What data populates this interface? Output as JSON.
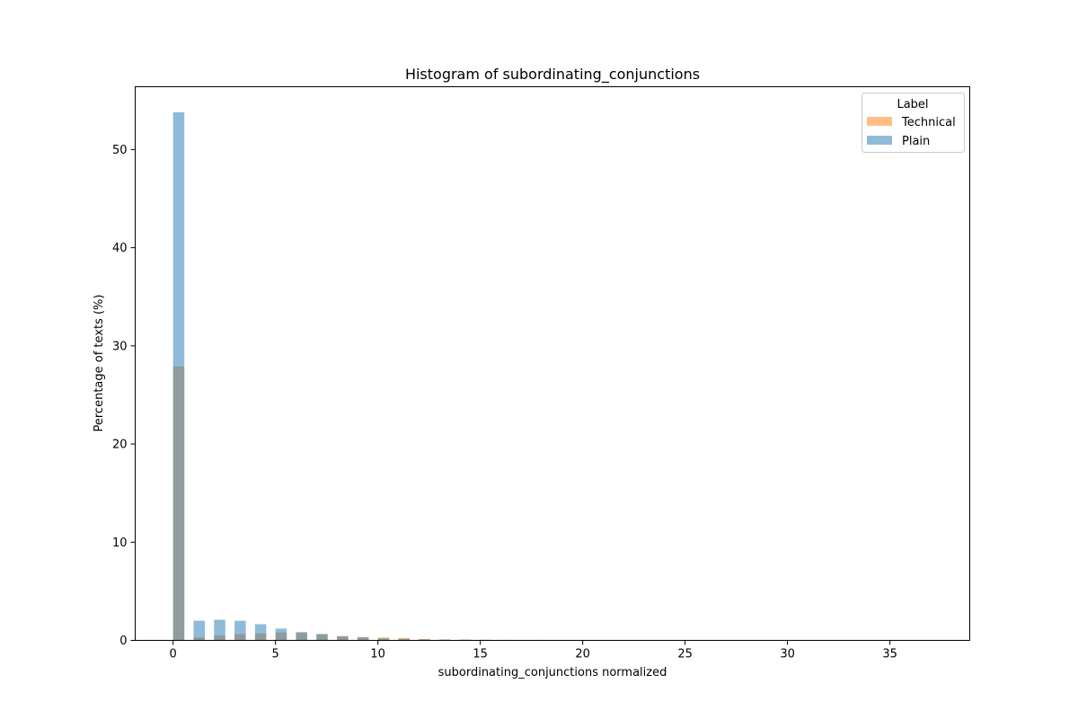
{
  "chart_data": {
    "type": "bar",
    "title": "Histogram of subordinating_conjunctions",
    "xlabel": "subordinating_conjunctions normalized",
    "ylabel": "Percentage of texts (%)",
    "xlim": [
      -1.85,
      38.9
    ],
    "ylim": [
      0,
      56.4
    ],
    "xticks": [
      0,
      5,
      10,
      15,
      20,
      25,
      30,
      35
    ],
    "yticks": [
      0,
      10,
      20,
      30,
      40,
      50
    ],
    "bin_width": 0.55,
    "grid": false,
    "legend": {
      "title": "Label",
      "position": "top-right"
    },
    "series": [
      {
        "name": "Technical",
        "color": "#ff7f0e",
        "x": [
          0,
          1,
          2,
          3,
          4,
          5,
          6,
          7,
          8,
          9,
          10,
          11,
          12,
          13,
          14,
          15,
          16,
          17.7
        ],
        "values": [
          27.9,
          0.3,
          0.5,
          0.65,
          0.7,
          0.8,
          0.75,
          0.6,
          0.45,
          0.35,
          0.3,
          0.25,
          0.15,
          0.1,
          0.1,
          0.08,
          0.06,
          0.05
        ]
      },
      {
        "name": "Plain",
        "color": "#1f77b4",
        "x": [
          0,
          1,
          2,
          3,
          4,
          5,
          6,
          7,
          8,
          9,
          10,
          11,
          12,
          13,
          14,
          15
        ],
        "values": [
          53.8,
          2.0,
          2.1,
          2.0,
          1.65,
          1.2,
          0.85,
          0.65,
          0.4,
          0.3,
          0.2,
          0.15,
          0.1,
          0.07,
          0.05,
          0.04
        ]
      }
    ]
  }
}
